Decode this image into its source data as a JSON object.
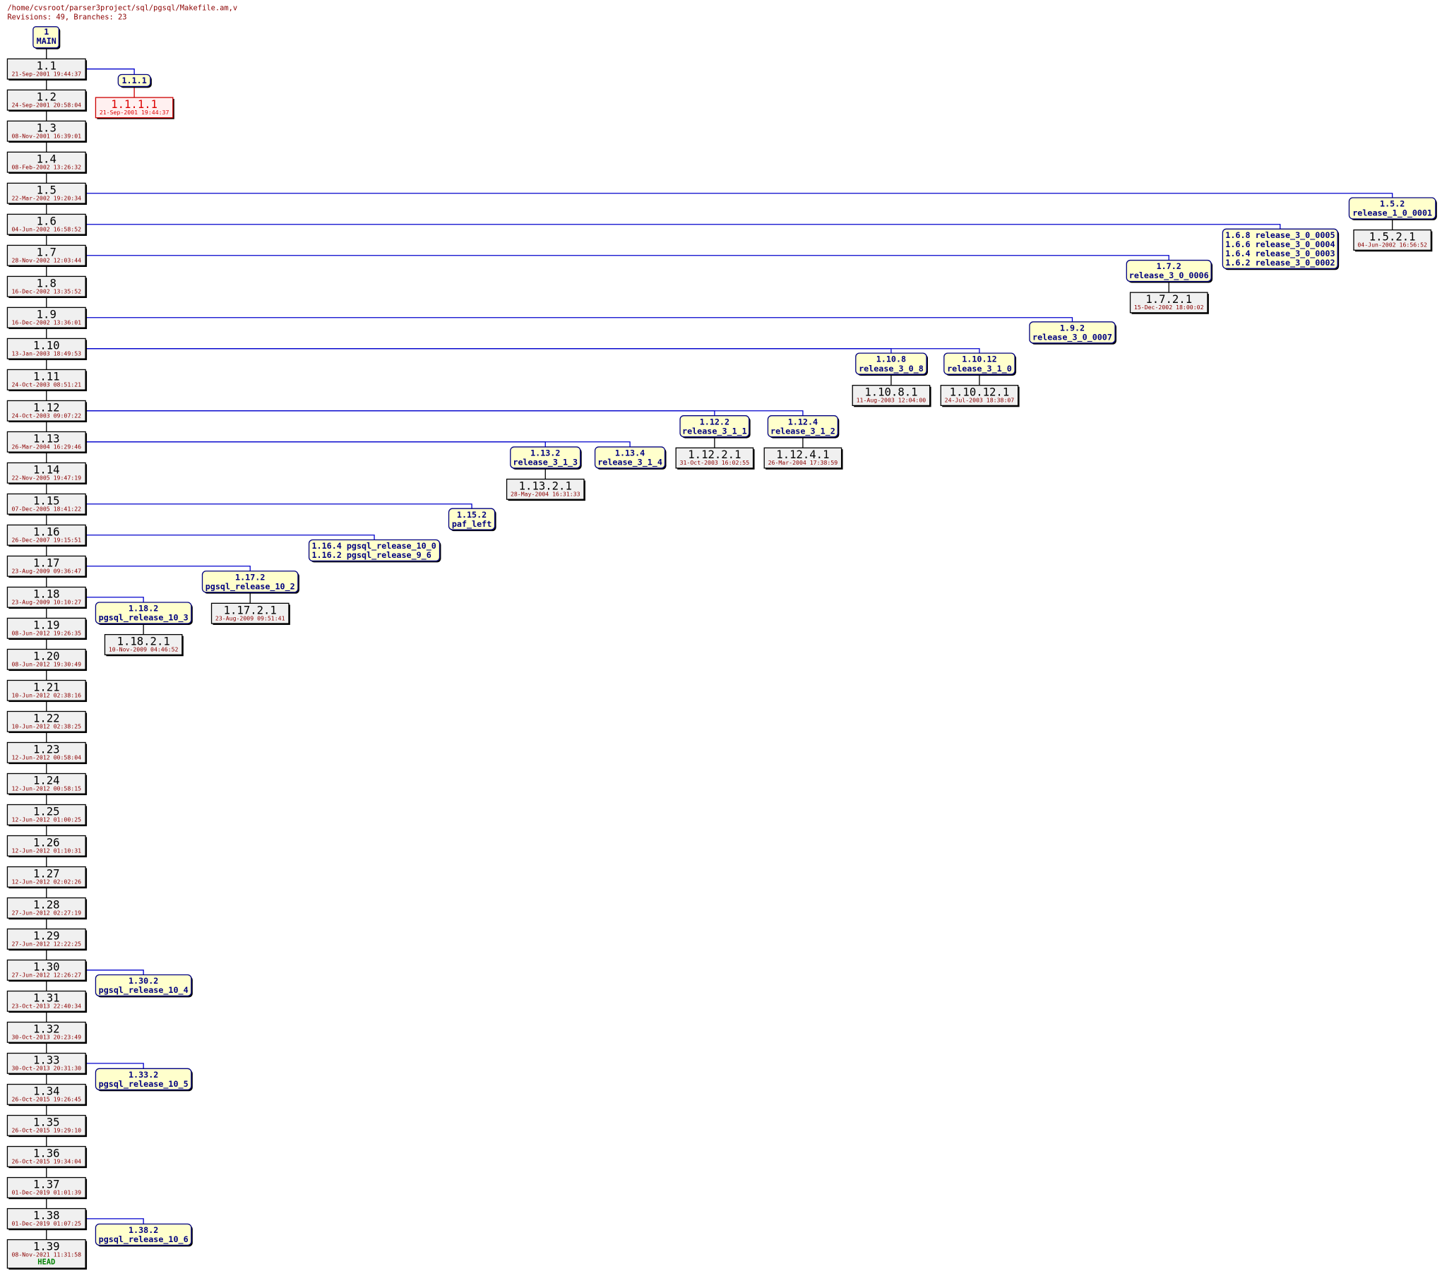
{
  "header": {
    "path": "/home/cvsroot/parser3project/sql/pgsql/Makefile.am,v",
    "summary": "Revisions: 49, Branches: 23"
  },
  "main": {
    "rev": "1",
    "label": "MAIN"
  },
  "trunk": [
    {
      "rev": "1.1",
      "date": "21-Sep-2001 19:44:37"
    },
    {
      "rev": "1.2",
      "date": "24-Sep-2001 20:58:04"
    },
    {
      "rev": "1.3",
      "date": "08-Nov-2001 16:39:01"
    },
    {
      "rev": "1.4",
      "date": "08-Feb-2002 13:26:32"
    },
    {
      "rev": "1.5",
      "date": "22-Mar-2002 19:20:34"
    },
    {
      "rev": "1.6",
      "date": "04-Jun-2002 16:58:52"
    },
    {
      "rev": "1.7",
      "date": "28-Nov-2002 12:03:44"
    },
    {
      "rev": "1.8",
      "date": "16-Dec-2002 13:35:52"
    },
    {
      "rev": "1.9",
      "date": "16-Dec-2002 13:36:01"
    },
    {
      "rev": "1.10",
      "date": "13-Jan-2003 18:49:53"
    },
    {
      "rev": "1.11",
      "date": "24-Oct-2003 08:51:21"
    },
    {
      "rev": "1.12",
      "date": "24-Oct-2003 09:07:22"
    },
    {
      "rev": "1.13",
      "date": "26-Mar-2004 16:29:46"
    },
    {
      "rev": "1.14",
      "date": "22-Nov-2005 19:47:19"
    },
    {
      "rev": "1.15",
      "date": "07-Dec-2005 18:41:22"
    },
    {
      "rev": "1.16",
      "date": "26-Dec-2007 19:15:51"
    },
    {
      "rev": "1.17",
      "date": "23-Aug-2009 09:36:47"
    },
    {
      "rev": "1.18",
      "date": "23-Aug-2009 10:10:27"
    },
    {
      "rev": "1.19",
      "date": "08-Jun-2012 19:26:35"
    },
    {
      "rev": "1.20",
      "date": "08-Jun-2012 19:30:49"
    },
    {
      "rev": "1.21",
      "date": "10-Jun-2012 02:38:16"
    },
    {
      "rev": "1.22",
      "date": "10-Jun-2012 02:38:25"
    },
    {
      "rev": "1.23",
      "date": "12-Jun-2012 00:58:04"
    },
    {
      "rev": "1.24",
      "date": "12-Jun-2012 00:58:15"
    },
    {
      "rev": "1.25",
      "date": "12-Jun-2012 01:00:25"
    },
    {
      "rev": "1.26",
      "date": "12-Jun-2012 01:10:31"
    },
    {
      "rev": "1.27",
      "date": "12-Jun-2012 02:02:26"
    },
    {
      "rev": "1.28",
      "date": "27-Jun-2012 02:27:19"
    },
    {
      "rev": "1.29",
      "date": "27-Jun-2012 12:22:25"
    },
    {
      "rev": "1.30",
      "date": "27-Jun-2012 12:26:27"
    },
    {
      "rev": "1.31",
      "date": "23-Oct-2013 22:40:34"
    },
    {
      "rev": "1.32",
      "date": "30-Oct-2013 20:23:49"
    },
    {
      "rev": "1.33",
      "date": "30-Oct-2013 20:31:30"
    },
    {
      "rev": "1.34",
      "date": "26-Oct-2015 19:26:45"
    },
    {
      "rev": "1.35",
      "date": "26-Oct-2015 19:29:10"
    },
    {
      "rev": "1.36",
      "date": "26-Oct-2015 19:34:04"
    },
    {
      "rev": "1.37",
      "date": "01-Dec-2019 01:01:39"
    },
    {
      "rev": "1.38",
      "date": "01-Dec-2019 01:07:25"
    },
    {
      "rev": "1.39",
      "date": "08-Nov-2021 11:31:58",
      "tag": "HEAD"
    }
  ],
  "branches": [
    {
      "tags": [
        "1.1.1"
      ],
      "revisions": [
        {
          "rev": "1.1.1.1",
          "date": "21-Sep-2001 19:44:37"
        }
      ]
    },
    {
      "tags": [
        "1.5.2",
        "release_1_0_0001"
      ],
      "revisions": [
        {
          "rev": "1.5.2.1",
          "date": "04-Jun-2002 16:56:52"
        }
      ]
    },
    {
      "tags": [
        "1.6.8 release_3_0_0005",
        "1.6.6 release_3_0_0004",
        "1.6.4 release_3_0_0003",
        "1.6.2 release_3_0_0002"
      ],
      "revisions": []
    },
    {
      "tags": [
        "1.7.2",
        "release_3_0_0006"
      ],
      "revisions": [
        {
          "rev": "1.7.2.1",
          "date": "15-Dec-2002 18:00:02"
        }
      ]
    },
    {
      "tags": [
        "1.9.2",
        "release_3_0_0007"
      ],
      "revisions": []
    },
    {
      "tags": [
        "1.10.8",
        "release_3_0_8"
      ],
      "revisions": [
        {
          "rev": "1.10.8.1",
          "date": "11-Aug-2003 12:04:00"
        }
      ]
    },
    {
      "tags": [
        "1.10.12",
        "release_3_1_0"
      ],
      "revisions": [
        {
          "rev": "1.10.12.1",
          "date": "24-Jul-2003 18:38:07"
        }
      ]
    },
    {
      "tags": [
        "1.12.2",
        "release_3_1_1"
      ],
      "revisions": [
        {
          "rev": "1.12.2.1",
          "date": "31-Oct-2003 16:02:55"
        }
      ]
    },
    {
      "tags": [
        "1.12.4",
        "release_3_1_2"
      ],
      "revisions": [
        {
          "rev": "1.12.4.1",
          "date": "26-Mar-2004 17:38:59"
        }
      ]
    },
    {
      "tags": [
        "1.13.2",
        "release_3_1_3"
      ],
      "revisions": [
        {
          "rev": "1.13.2.1",
          "date": "28-May-2004 16:31:33"
        }
      ]
    },
    {
      "tags": [
        "1.13.4",
        "release_3_1_4"
      ],
      "revisions": []
    },
    {
      "tags": [
        "1.15.2",
        "paf_left"
      ],
      "revisions": []
    },
    {
      "tags": [
        "1.16.4 pgsql_release_10_0",
        "1.16.2 pgsql_release_9_6"
      ],
      "revisions": []
    },
    {
      "tags": [
        "1.17.2",
        "pgsql_release_10_2"
      ],
      "revisions": [
        {
          "rev": "1.17.2.1",
          "date": "23-Aug-2009 09:51:41"
        }
      ]
    },
    {
      "tags": [
        "1.18.2",
        "pgsql_release_10_3"
      ],
      "revisions": [
        {
          "rev": "1.18.2.1",
          "date": "10-Nov-2009 04:46:52"
        }
      ]
    },
    {
      "tags": [
        "1.30.2",
        "pgsql_release_10_4"
      ],
      "revisions": []
    },
    {
      "tags": [
        "1.33.2",
        "pgsql_release_10_5"
      ],
      "revisions": []
    },
    {
      "tags": [
        "1.38.2",
        "pgsql_release_10_6"
      ],
      "revisions": []
    }
  ]
}
